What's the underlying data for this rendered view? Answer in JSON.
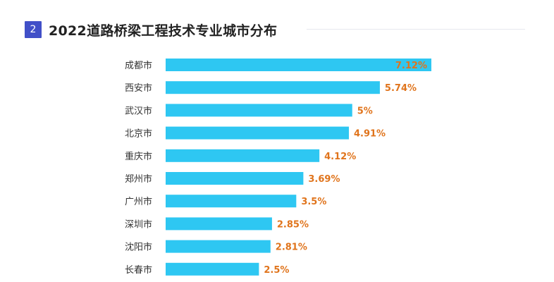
{
  "header": {
    "badge": "2",
    "title": "2022道路桥梁工程技术专业城市分布"
  },
  "chart_data": {
    "type": "bar",
    "orientation": "horizontal",
    "title": "2022道路桥梁工程技术专业城市分布",
    "categories": [
      "成都市",
      "西安市",
      "武汉市",
      "北京市",
      "重庆市",
      "郑州市",
      "广州市",
      "深圳市",
      "沈阳市",
      "长春市"
    ],
    "values": [
      7.12,
      5.74,
      5,
      4.91,
      4.12,
      3.69,
      3.5,
      2.85,
      2.81,
      2.5
    ],
    "value_labels": [
      "7.12%",
      "5.74%",
      "5%",
      "4.91%",
      "4.12%",
      "3.69%",
      "3.5%",
      "2.85%",
      "2.81%",
      "2.5%"
    ],
    "unit": "%",
    "xlim": [
      0,
      7.12
    ],
    "grid": false,
    "legend": false,
    "colors": {
      "bar": "#2ec7f2",
      "value_label": "#e0741c",
      "badge": "#4150c8"
    }
  }
}
